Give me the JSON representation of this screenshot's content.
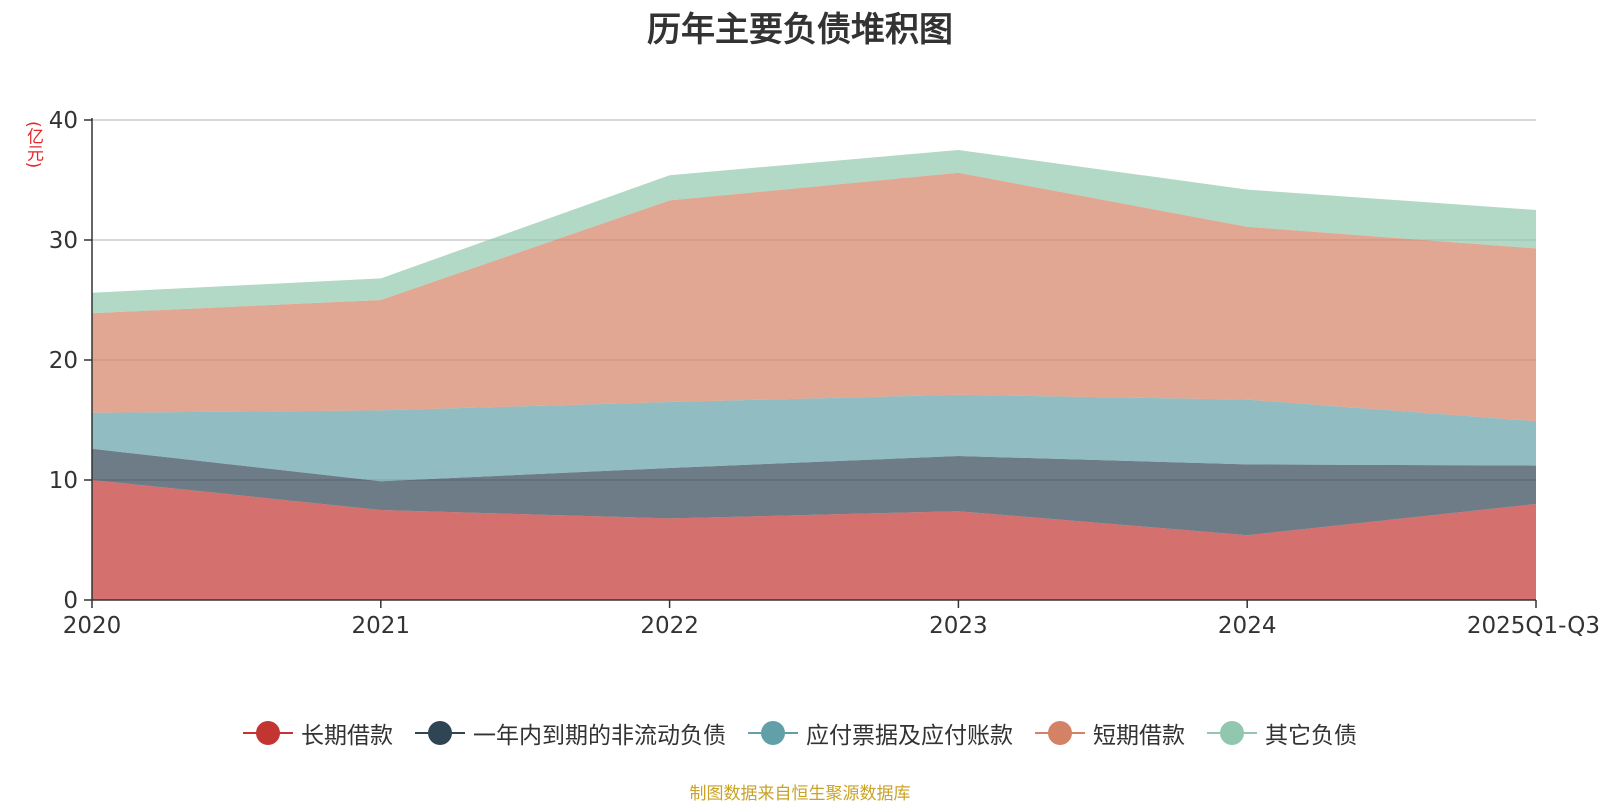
{
  "chart_data": {
    "type": "area",
    "stacked": true,
    "title": "历年主要负债堆积图",
    "unit": "(亿元)",
    "categories": [
      "2020",
      "2021",
      "2022",
      "2023",
      "2024",
      "2025Q1-Q3"
    ],
    "ylim": [
      0,
      40
    ],
    "yticks": [
      0,
      10,
      20,
      30,
      40
    ],
    "grid": true,
    "legend_position": "bottom",
    "series": [
      {
        "name": "长期借款",
        "color": "#c23531",
        "values": [
          10.0,
          7.5,
          6.8,
          7.4,
          5.4,
          8.0
        ]
      },
      {
        "name": "一年内到期的非流动负债",
        "color": "#2f4554",
        "values": [
          2.6,
          2.4,
          4.2,
          4.6,
          5.9,
          3.2
        ]
      },
      {
        "name": "应付票据及应付账款",
        "color": "#61a0a8",
        "values": [
          3.0,
          5.9,
          5.5,
          5.1,
          5.4,
          3.7
        ]
      },
      {
        "name": "短期借款",
        "color": "#d48265",
        "values": [
          8.3,
          9.2,
          16.8,
          18.5,
          14.4,
          14.4
        ]
      },
      {
        "name": "其它负债",
        "color": "#91c7ae",
        "values": [
          1.7,
          1.8,
          2.1,
          1.9,
          3.1,
          3.2
        ]
      }
    ],
    "source": "制图数据来自恒生聚源数据库"
  }
}
